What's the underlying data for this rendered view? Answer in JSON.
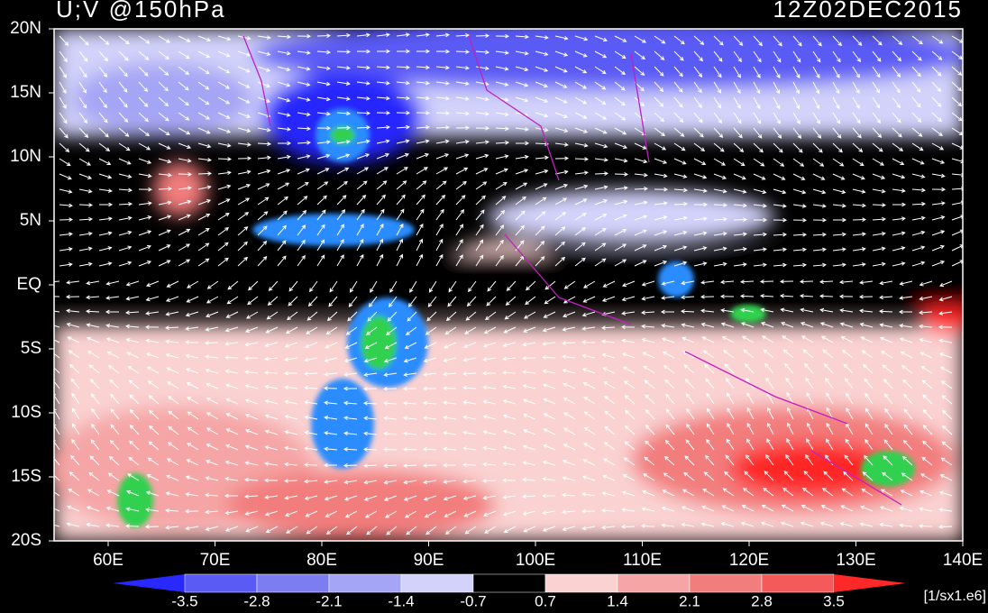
{
  "map": {
    "title": "U;V @150hPa",
    "valid_time": "12Z02DEC2015",
    "lat_labels": [
      "20N",
      "15N",
      "10N",
      "5N",
      "EQ",
      "5S",
      "10S",
      "15S",
      "20S"
    ],
    "lon_labels": [
      "60E",
      "70E",
      "80E",
      "90E",
      "100E",
      "110E",
      "120E",
      "130E",
      "140E"
    ],
    "colorbar": {
      "labels": [
        -3.5,
        -2.8,
        -2.1,
        -1.4,
        -0.7,
        0.7,
        1.4,
        2.1,
        2.8,
        3.5
      ],
      "colors": [
        "#2828ff",
        "#5a5af5",
        "#7d7df2",
        "#a5a5f5",
        "#d2d2fa",
        "#000000",
        "#fad2d2",
        "#f5a5a5",
        "#f27d7d",
        "#f55a5a",
        "#ff2828"
      ]
    },
    "units": "[1/sx1.e6]"
  }
}
